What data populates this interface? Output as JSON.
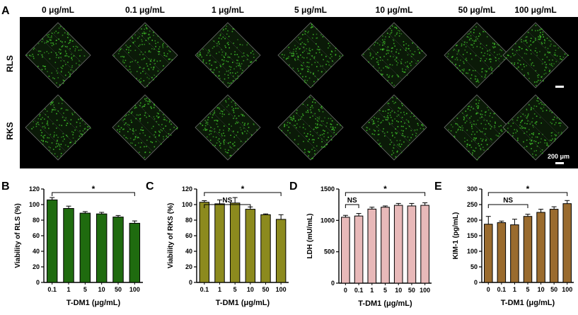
{
  "panel_a": {
    "letter": "A",
    "column_headers": [
      "0 μg/mL",
      "0.1 μg/mL",
      "1 μg/mL",
      "5 μg/mL",
      "10 μg/mL",
      "50 μg/mL",
      "100 μg/mL"
    ],
    "row_labels": [
      "RLS",
      "RKS"
    ],
    "scale_bar_label": "200 μm",
    "background_color": "#000000",
    "stain_color": "#3fbf2a"
  },
  "chart_data": [
    {
      "letter": "B",
      "type": "bar",
      "categories": [
        "0.1",
        "1",
        "5",
        "10",
        "50",
        "100"
      ],
      "values": [
        106,
        95,
        89,
        88,
        84,
        76
      ],
      "errors": [
        3,
        3,
        2,
        2,
        2,
        3
      ],
      "ylabel": "Viability of RLS (%)",
      "xlabel": "T-DM1 (μg/mL)",
      "ylim": [
        0,
        120
      ],
      "yticks": [
        0,
        20,
        40,
        60,
        80,
        100,
        120
      ],
      "color": "#1f6b0f",
      "brackets": [
        {
          "from": 0,
          "to": 5,
          "label": "*"
        }
      ]
    },
    {
      "letter": "C",
      "type": "bar",
      "categories": [
        "0.1",
        "1",
        "5",
        "10",
        "50",
        "100"
      ],
      "values": [
        103,
        101,
        102,
        94,
        87,
        81
      ],
      "errors": [
        2,
        5,
        7,
        3,
        1,
        6
      ],
      "ylabel": "Viability of RKS (%)",
      "xlabel": "T-DM1 (μg/mL)",
      "ylim": [
        0,
        120
      ],
      "yticks": [
        0,
        20,
        40,
        60,
        80,
        100,
        120
      ],
      "color": "#8c8a1e",
      "brackets": [
        {
          "from": 0,
          "to": 3,
          "label": "NS"
        },
        {
          "from": 0,
          "to": 5,
          "label": "*"
        }
      ]
    },
    {
      "letter": "D",
      "type": "bar",
      "categories": [
        "0",
        "0.1",
        "1",
        "5",
        "10",
        "50",
        "100"
      ],
      "values": [
        1050,
        1070,
        1180,
        1210,
        1240,
        1230,
        1240
      ],
      "errors": [
        30,
        40,
        30,
        20,
        30,
        40,
        40
      ],
      "ylabel": "LDH (mU/mL)",
      "xlabel": "T-DM1 (μg/mL)",
      "ylim": [
        0,
        1500
      ],
      "yticks": [
        0,
        500,
        1000,
        1500
      ],
      "color": "#e8b9b9",
      "brackets": [
        {
          "from": 0,
          "to": 1,
          "label": "NS"
        },
        {
          "from": 0,
          "to": 6,
          "label": "*"
        }
      ]
    },
    {
      "letter": "E",
      "type": "bar",
      "categories": [
        "0",
        "0.1",
        "1",
        "5",
        "10",
        "50",
        "100"
      ],
      "values": [
        187,
        192,
        185,
        212,
        225,
        235,
        253
      ],
      "errors": [
        25,
        5,
        18,
        7,
        10,
        8,
        10
      ],
      "ylabel": "KIM-1 (pg/mL)",
      "xlabel": "T-DM1 (μg/mL)",
      "ylim": [
        0,
        300
      ],
      "yticks": [
        0,
        50,
        100,
        150,
        200,
        250,
        300
      ],
      "color": "#9a6b2e",
      "brackets": [
        {
          "from": 0,
          "to": 3,
          "label": "NS"
        },
        {
          "from": 0,
          "to": 6,
          "label": "*"
        }
      ]
    }
  ]
}
